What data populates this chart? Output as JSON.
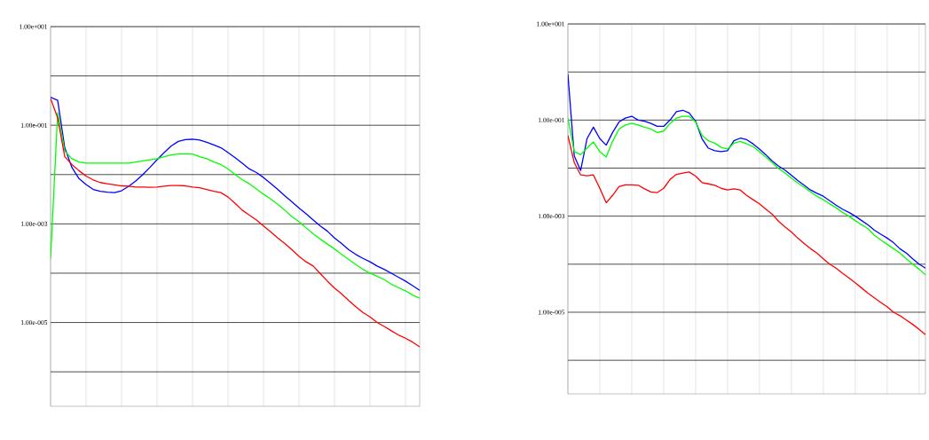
{
  "chart_data": [
    {
      "type": "line",
      "categories": [
        null,
        null,
        null,
        null,
        null,
        null,
        null,
        null,
        null,
        null,
        null,
        null,
        null,
        null,
        null,
        null,
        null,
        null,
        null,
        null,
        null,
        null,
        null,
        null,
        null,
        null,
        null,
        null,
        null,
        null,
        null,
        null,
        null,
        null,
        null,
        null,
        null,
        null,
        null,
        null,
        null,
        null,
        null,
        null,
        null,
        null,
        null,
        null,
        null,
        null,
        null,
        null,
        null
      ],
      "series": [
        {
          "color": "#0000ff",
          "values": [
            0.37,
            0.32,
            0.035,
            0.014,
            0.0083,
            0.0063,
            0.005,
            0.0046,
            0.0044,
            0.0043,
            0.0047,
            0.0058,
            0.0074,
            0.01,
            0.014,
            0.02,
            0.028,
            0.038,
            0.047,
            0.051,
            0.052,
            0.05,
            0.045,
            0.04,
            0.035,
            0.028,
            0.022,
            0.017,
            0.013,
            0.011,
            0.0087,
            0.0066,
            0.005,
            0.0037,
            0.0028,
            0.0021,
            0.0016,
            0.0012,
            0.00091,
            0.00071,
            0.00052,
            0.0004,
            0.0003,
            0.00024,
            0.0002,
            0.00017,
            0.00014,
            0.00012,
            0.0001,
            8.3e-05,
            6.9e-05,
            5.6e-05,
            4.5e-05
          ]
        },
        {
          "color": "#00ff00",
          "values": [
            0.0002,
            0.18,
            0.03,
            0.021,
            0.018,
            0.017,
            0.017,
            0.017,
            0.017,
            0.017,
            0.017,
            0.017,
            0.018,
            0.019,
            0.02,
            0.021,
            0.023,
            0.025,
            0.026,
            0.026,
            0.026,
            0.023,
            0.021,
            0.018,
            0.016,
            0.013,
            0.01,
            0.0079,
            0.0065,
            0.0051,
            0.004,
            0.0032,
            0.0025,
            0.0019,
            0.0014,
            0.0011,
            0.00083,
            0.00063,
            0.00049,
            0.00039,
            0.00031,
            0.00024,
            0.00019,
            0.00015,
            0.00012,
            0.0001,
            8.7e-05,
            7.4e-05,
            6e-05,
            5.1e-05,
            4.4e-05,
            3.6e-05,
            3.1e-05
          ]
        },
        {
          "color": "#ff0000",
          "values": [
            0.35,
            0.14,
            0.023,
            0.016,
            0.012,
            0.0093,
            0.0078,
            0.0069,
            0.0065,
            0.0062,
            0.0059,
            0.0058,
            0.0056,
            0.0056,
            0.0055,
            0.0056,
            0.0058,
            0.006,
            0.006,
            0.0059,
            0.0056,
            0.0054,
            0.005,
            0.0046,
            0.0043,
            0.0035,
            0.0026,
            0.0019,
            0.0015,
            0.0012,
            0.00091,
            0.00069,
            0.00052,
            0.0004,
            0.0003,
            0.00022,
            0.00017,
            0.00014,
            9.8e-05,
            6.9e-05,
            5e-05,
            3.8e-05,
            2.8e-05,
            2.1e-05,
            1.6e-05,
            1.3e-05,
            1e-05,
            8.3e-06,
            6.8e-06,
            5.6e-06,
            4.8e-06,
            4e-06,
            3.2e-06
          ]
        }
      ],
      "log": "y",
      "ylim": [
        2e-07,
        10
      ],
      "yticks": [
        {
          "value": 10,
          "label": "1.00e+001"
        },
        {
          "value": 1,
          "label": null
        },
        {
          "value": 0.1,
          "label": "1.00e-001"
        },
        {
          "value": 0.01,
          "label": null
        },
        {
          "value": 0.001,
          "label": "1.00e-003"
        },
        {
          "value": 0.0001,
          "label": null
        },
        {
          "value": 1e-05,
          "label": "1.00e-005"
        },
        {
          "value": 1e-06,
          "label": null
        }
      ],
      "grid": true,
      "tick_labels": "y"
    },
    {
      "type": "line",
      "categories": [
        null,
        null,
        null,
        null,
        null,
        null,
        null,
        null,
        null,
        null,
        null,
        null,
        null,
        null,
        null,
        null,
        null,
        null,
        null,
        null,
        null,
        null,
        null,
        null,
        null,
        null,
        null,
        null,
        null,
        null,
        null,
        null,
        null,
        null,
        null,
        null,
        null,
        null,
        null,
        null,
        null,
        null,
        null,
        null,
        null,
        null,
        null,
        null,
        null,
        null,
        null,
        null,
        null,
        null,
        null,
        null,
        null
      ],
      "series": [
        {
          "color": "#0000ff",
          "values": [
            0.91,
            0.018,
            0.0089,
            0.041,
            0.071,
            0.041,
            0.03,
            0.055,
            0.091,
            0.11,
            0.12,
            0.1,
            0.095,
            0.085,
            0.074,
            0.074,
            0.1,
            0.15,
            0.16,
            0.14,
            0.095,
            0.041,
            0.026,
            0.023,
            0.022,
            0.023,
            0.037,
            0.042,
            0.039,
            0.032,
            0.025,
            0.019,
            0.014,
            0.011,
            0.0091,
            0.0071,
            0.0055,
            0.0044,
            0.0035,
            0.003,
            0.0026,
            0.0021,
            0.0017,
            0.0014,
            0.0012,
            0.001,
            0.00081,
            0.00066,
            0.00051,
            0.00042,
            0.00035,
            0.00028,
            0.00021,
            0.00017,
            0.00013,
            0.0001,
            8.3e-05
          ]
        },
        {
          "color": "#00ff00",
          "values": [
            0.11,
            0.022,
            0.019,
            0.026,
            0.035,
            0.022,
            0.017,
            0.036,
            0.065,
            0.079,
            0.085,
            0.079,
            0.071,
            0.065,
            0.055,
            0.059,
            0.085,
            0.11,
            0.12,
            0.12,
            0.091,
            0.048,
            0.037,
            0.033,
            0.027,
            0.025,
            0.033,
            0.036,
            0.032,
            0.028,
            0.022,
            0.017,
            0.013,
            0.0098,
            0.0079,
            0.0062,
            0.0049,
            0.004,
            0.0032,
            0.0026,
            0.0022,
            0.0018,
            0.0015,
            0.0012,
            0.001,
            0.00081,
            0.00066,
            0.00055,
            0.0004,
            0.00032,
            0.00026,
            0.00021,
            0.00017,
            0.00013,
            0.0001,
            7.9e-05,
            6e-05
          ]
        },
        {
          "color": "#ff0000",
          "values": [
            0.048,
            0.013,
            0.0072,
            0.0069,
            0.0072,
            0.0038,
            0.0019,
            0.0027,
            0.0041,
            0.0045,
            0.0045,
            0.0044,
            0.0037,
            0.0032,
            0.0031,
            0.0038,
            0.0058,
            0.0074,
            0.0079,
            0.0083,
            0.0068,
            0.005,
            0.0047,
            0.0044,
            0.0038,
            0.0035,
            0.0037,
            0.0035,
            0.0027,
            0.0022,
            0.0018,
            0.0014,
            0.0011,
            0.00078,
            0.0006,
            0.00047,
            0.00035,
            0.00027,
            0.00021,
            0.00017,
            0.00013,
            0.0001,
            8.3e-05,
            6.5e-05,
            5.2e-05,
            4.1e-05,
            3.2e-05,
            2.5e-05,
            2e-05,
            1.6e-05,
            1.3e-05,
            1e-05,
            8.5e-06,
            6.9e-06,
            5.6e-06,
            4.4e-06,
            3.4e-06
          ]
        }
      ],
      "log": "y",
      "ylim": [
        2e-07,
        10
      ],
      "yticks": [
        {
          "value": 10,
          "label": "1.00e+001"
        },
        {
          "value": 1,
          "label": null
        },
        {
          "value": 0.1,
          "label": "1.00e-001"
        },
        {
          "value": 0.01,
          "label": null
        },
        {
          "value": 0.001,
          "label": "1.00e-003"
        },
        {
          "value": 0.0001,
          "label": null
        },
        {
          "value": 1e-05,
          "label": "1.00e-005"
        },
        {
          "value": 1e-06,
          "label": null
        }
      ],
      "grid": true,
      "tick_labels": "y"
    }
  ]
}
